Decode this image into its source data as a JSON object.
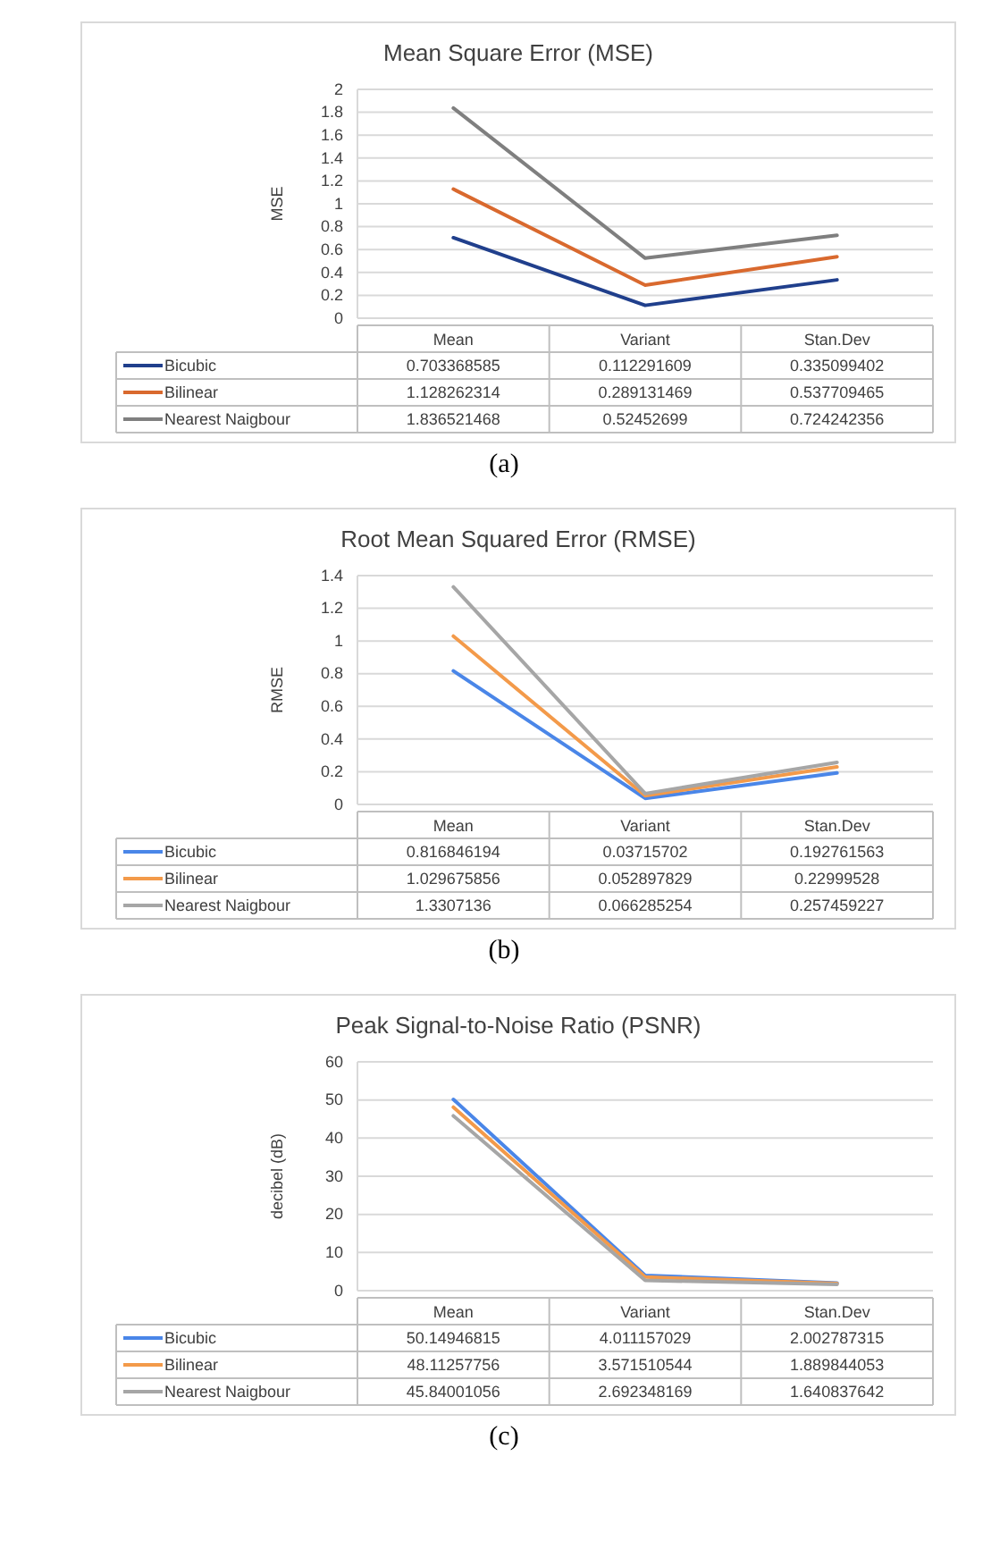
{
  "chart_data": [
    {
      "type": "line",
      "title": "Mean Square Error (MSE)",
      "ylabel": "MSE",
      "categories": [
        "Mean",
        "Variant",
        "Stan.Dev"
      ],
      "ylim": [
        0,
        2
      ],
      "yticks": [
        0,
        0.2,
        0.4,
        0.6,
        0.8,
        1,
        1.2,
        1.4,
        1.6,
        1.8,
        2
      ],
      "grid": "y",
      "legend": "bottom",
      "data_labels": true,
      "annotations": [
        "(a)"
      ],
      "series": [
        {
          "name": "Bicubic",
          "color": "#203f8c",
          "values": [
            0.703368585,
            0.112291609,
            0.335099402
          ]
        },
        {
          "name": "Bilinear",
          "color": "#d9692e",
          "values": [
            1.128262314,
            0.289131469,
            0.537709465
          ]
        },
        {
          "name": "Nearest Naigbour",
          "color": "#7f7f7f",
          "values": [
            1.836521468,
            0.52452699,
            0.724242356
          ]
        }
      ]
    },
    {
      "type": "line",
      "title": "Root Mean Squared Error (RMSE)",
      "ylabel": "RMSE",
      "categories": [
        "Mean",
        "Variant",
        "Stan.Dev"
      ],
      "ylim": [
        0,
        1.4
      ],
      "yticks": [
        0,
        0.2,
        0.4,
        0.6,
        0.8,
        1,
        1.2,
        1.4
      ],
      "grid": "y",
      "legend": "bottom",
      "data_labels": true,
      "annotations": [
        "(b)"
      ],
      "series": [
        {
          "name": "Bicubic",
          "color": "#4a86e8",
          "values": [
            0.816846194,
            0.03715702,
            0.192761563
          ]
        },
        {
          "name": "Bilinear",
          "color": "#f39a4a",
          "values": [
            1.029675856,
            0.052897829,
            0.22999528
          ]
        },
        {
          "name": "Nearest Naigbour",
          "color": "#a6a6a6",
          "values": [
            1.3307136,
            0.066285254,
            0.257459227
          ]
        }
      ]
    },
    {
      "type": "line",
      "title": "Peak Signal-to-Noise Ratio (PSNR)",
      "ylabel": "decibel (dB)",
      "categories": [
        "Mean",
        "Variant",
        "Stan.Dev"
      ],
      "ylim": [
        0,
        60
      ],
      "yticks": [
        0,
        10,
        20,
        30,
        40,
        50,
        60
      ],
      "grid": "y",
      "legend": "bottom",
      "data_labels": true,
      "annotations": [
        "(c)"
      ],
      "series": [
        {
          "name": "Bicubic",
          "color": "#4a86e8",
          "values": [
            50.14946815,
            4.011157029,
            2.002787315
          ]
        },
        {
          "name": "Bilinear",
          "color": "#f39a4a",
          "values": [
            48.11257756,
            3.571510544,
            1.889844053
          ]
        },
        {
          "name": "Nearest Naigbour",
          "color": "#a6a6a6",
          "values": [
            45.84001056,
            2.692348169,
            1.640837642
          ]
        }
      ]
    }
  ]
}
